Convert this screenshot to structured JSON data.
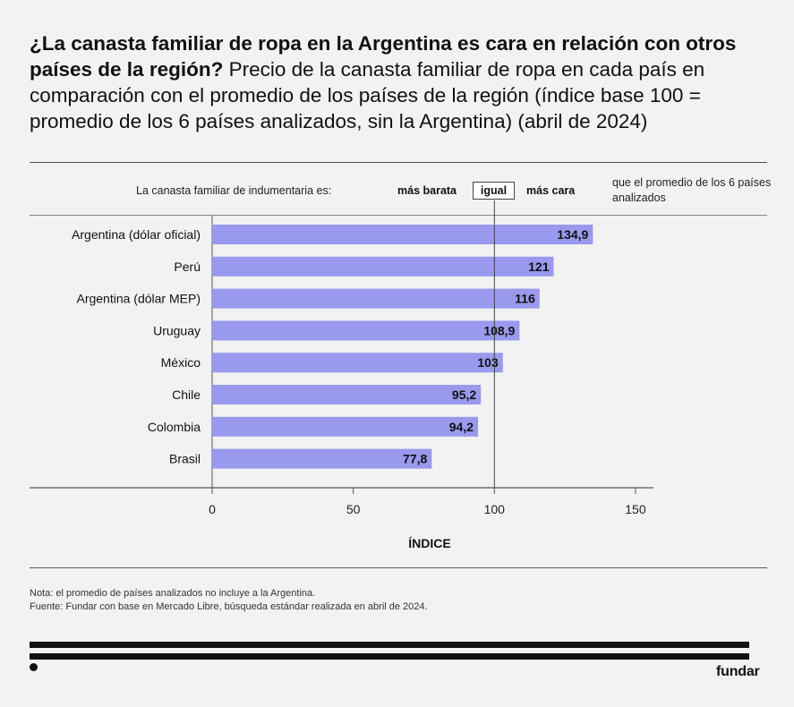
{
  "title": {
    "bold": "¿La canasta familiar de ropa en la Argentina es cara en relación con otros países de la región?",
    "rest": " Precio de la canasta familiar de ropa en cada país en comparación con el promedio de los países de la región (índice base 100 = promedio de los 6 países analizados, sin la Argentina) (abril de 2024)"
  },
  "header": {
    "lead": "La canasta familiar de indumentaria es:",
    "cheaper": "más barata",
    "equal": "igual",
    "pricier": "más cara",
    "trail": "que el promedio de los 6 países analizados"
  },
  "chart_data": {
    "type": "bar",
    "orientation": "horizontal",
    "categories": [
      "Argentina (dólar oficial)",
      "Perú",
      "Argentina (dólar MEP)",
      "Uruguay",
      "México",
      "Chile",
      "Colombia",
      "Brasil"
    ],
    "values": [
      134.9,
      121,
      116,
      108.9,
      103,
      95.2,
      94.2,
      77.8
    ],
    "value_labels": [
      "134,9",
      "121",
      "116",
      "108,9",
      "103",
      "95,2",
      "94,2",
      "77,8"
    ],
    "xlabel": "ÍNDICE",
    "xlim": [
      0,
      150
    ],
    "xticks": [
      0,
      50,
      100,
      150
    ],
    "reference_line": 100,
    "bar_color": "#9999ee",
    "grid": false
  },
  "notes": [
    "Nota: el promedio de países analizados no incluye a la Argentina.",
    "Fuente: Fundar con base en Mercado Libre, búsqueda estándar realizada en abril de 2024."
  ],
  "brand": "fundar"
}
